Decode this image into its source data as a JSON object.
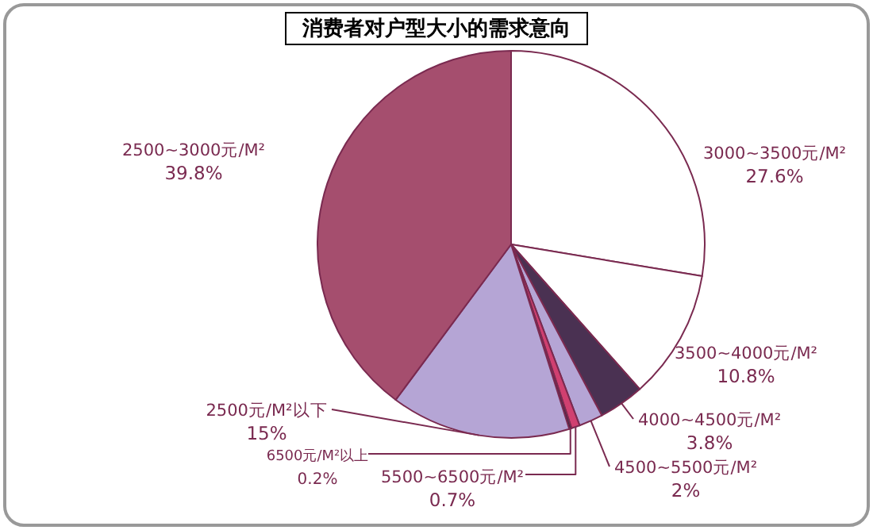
{
  "chart_data": {
    "type": "pie",
    "title": "消费者对户型大小的需求意向",
    "categories": [
      "3000~3500元/M²",
      "3500~4000元/M²",
      "4000~4500元/M²",
      "4500~5500元/M²",
      "5500~6500元/M²",
      "6500元/M²以上",
      "2500元/M²以下",
      "2500~3000元/M²"
    ],
    "values": [
      27.6,
      10.8,
      3.8,
      2,
      0.7,
      0.2,
      15,
      39.8
    ],
    "value_labels": [
      "27.6%",
      "10.8%",
      "3.8%",
      "2%",
      "0.7%",
      "0.2%",
      "15%",
      "39.8%"
    ],
    "colors": [
      "#ffffff",
      "#ffffff",
      "#4a3152",
      "#b5a5d5",
      "#d04070",
      "#3a2a42",
      "#b5a5d5",
      "#a54e6e"
    ]
  }
}
